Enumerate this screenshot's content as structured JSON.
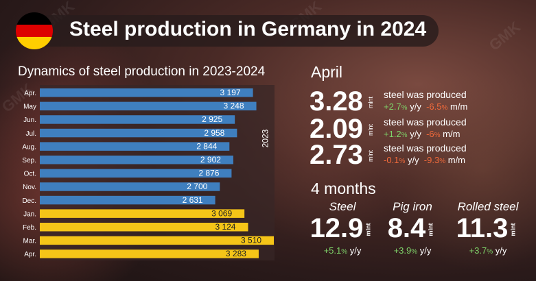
{
  "header": {
    "title": "Steel production in Germany in 2024"
  },
  "chart_data": {
    "type": "bar",
    "orientation": "horizontal",
    "title": "Dynamics of steel production in 2023-2024",
    "categories": [
      "Apr.",
      "May",
      "Jun.",
      "Jul.",
      "Aug.",
      "Sep.",
      "Oct.",
      "Nov.",
      "Dec.",
      "Jan.",
      "Feb.",
      "Mar.",
      "Apr."
    ],
    "values": [
      3197,
      3248,
      2925,
      2958,
      2844,
      2902,
      2876,
      2700,
      2631,
      3069,
      3124,
      3510,
      3283
    ],
    "value_labels": [
      "3 197",
      "3 248",
      "2 925",
      "2 958",
      "2 844",
      "2 902",
      "2 876",
      "2 700",
      "2 631",
      "3 069",
      "3 124",
      "3 510",
      "3 283"
    ],
    "year_group_label": "2023",
    "series_colors": {
      "2023": "#3f7fbf",
      "2024": "#f5c518"
    },
    "xlim": [
      0,
      3510
    ]
  },
  "april": {
    "title": "April",
    "stats": [
      {
        "value": "3.28",
        "unit": "mlnt",
        "desc": "steel was produced",
        "yy": "+2.7",
        "mm": "-6.5",
        "yy_color": "green",
        "mm_color": "red"
      },
      {
        "value": "2.09",
        "unit": "mlnt",
        "desc": "steel was produced",
        "yy": "+1.2",
        "mm": "-6",
        "yy_color": "green",
        "mm_color": "red"
      },
      {
        "value": "2.73",
        "unit": "mlnt",
        "desc": "steel was produced",
        "yy": "-0.1",
        "mm": "-9.3",
        "yy_color": "red",
        "mm_color": "red"
      }
    ],
    "pct": "%",
    "yy_suffix": "y/y",
    "mm_suffix": "m/m"
  },
  "four_months": {
    "title": "4 months",
    "items": [
      {
        "name": "Steel",
        "value": "12.9",
        "unit": "mlnt",
        "change": "+5.1"
      },
      {
        "name": "Pig iron",
        "value": "8.4",
        "unit": "mlnt",
        "change": "+3.9"
      },
      {
        "name": "Rolled steel",
        "value": "11.3",
        "unit": "mlnt",
        "change": "+3.7"
      }
    ],
    "pct": "%",
    "yy_suffix": "y/y"
  },
  "watermark": "GMK"
}
